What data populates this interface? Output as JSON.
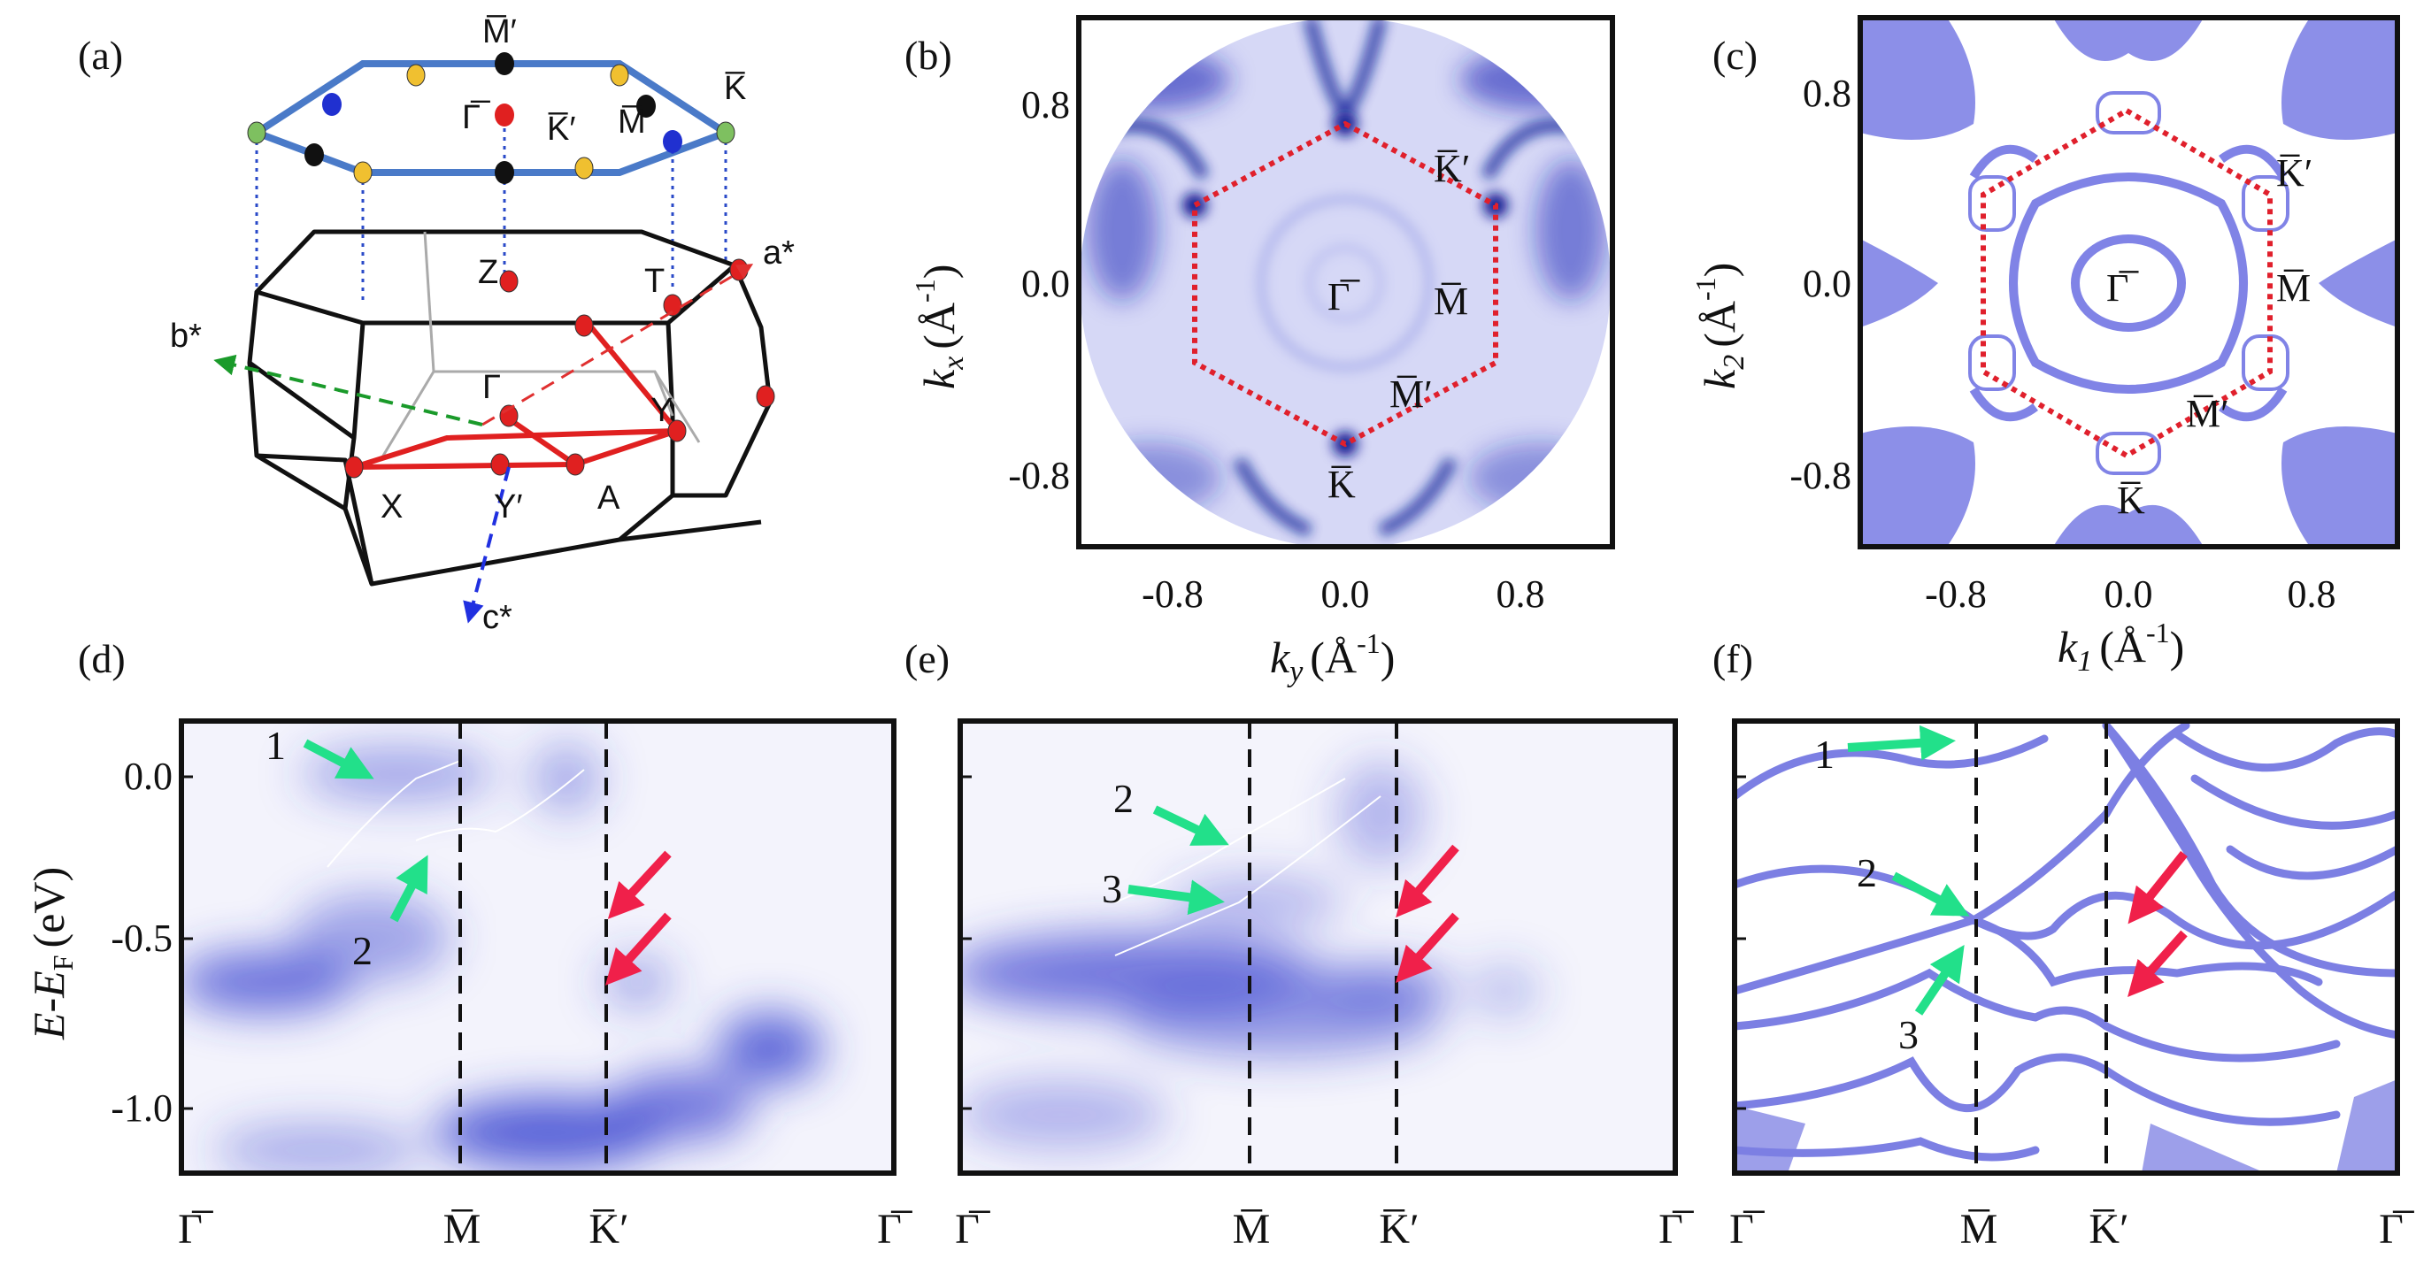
{
  "panels": {
    "a": {
      "label": "(a)",
      "top_points": [
        "M̅′",
        "Γ̅",
        "K̅′",
        "M̅",
        "K̅"
      ],
      "bulk_points": [
        "Z",
        "T",
        "Γ",
        "Y",
        "X",
        "Y′",
        "A"
      ],
      "axes": [
        "a*",
        "b*",
        "c*"
      ]
    },
    "b": {
      "label": "(b)",
      "xlabel_main": "k",
      "xlabel_sub": "y",
      "xlabel_unit": "(Å",
      "xlabel_exp": "-1",
      "ylabel_main": "k",
      "ylabel_sub": "x",
      "ylabel_unit": "(Å",
      "ylabel_exp": "-1",
      "xticks": [
        "-0.8",
        "0.0",
        "0.8"
      ],
      "yticks": [
        "0.8",
        "0.0",
        "-0.8"
      ],
      "points": {
        "gamma": "Γ̅",
        "m": "M̅",
        "k_prime": "K̅′",
        "m_prime": "M̅′",
        "k": "K̅"
      }
    },
    "c": {
      "label": "(c)",
      "xlabel_main": "k",
      "xlabel_sub": "1",
      "xlabel_unit": "(Å",
      "xlabel_exp": "-1",
      "ylabel_main": "k",
      "ylabel_sub": "2",
      "ylabel_unit": "(Å",
      "ylabel_exp": "-1",
      "xticks": [
        "-0.8",
        "0.0",
        "0.8"
      ],
      "yticks": [
        "0.8",
        "0.0",
        "-0.8"
      ],
      "points": {
        "gamma": "Γ̅",
        "m": "M̅",
        "k_prime": "K̅′",
        "m_prime": "M̅′",
        "k": "K̅"
      }
    },
    "d": {
      "label": "(d)",
      "ylabel_main": "E-E",
      "ylabel_sub": "F",
      "ylabel_unit": "(eV)",
      "yticks": [
        "0.0",
        "-0.5",
        "-1.0"
      ],
      "path": [
        "Γ̅",
        "M̅",
        "K̅′",
        "Γ̅"
      ],
      "arrows": [
        "1",
        "2"
      ]
    },
    "e": {
      "label": "(e)",
      "path": [
        "Γ̅",
        "M̅",
        "K̅′",
        "Γ̅"
      ],
      "arrows": [
        "2",
        "3"
      ]
    },
    "f": {
      "label": "(f)",
      "path": [
        "Γ̅",
        "M̅",
        "K̅′",
        "Γ̅"
      ],
      "arrows": [
        "1",
        "2",
        "3"
      ]
    }
  },
  "colors": {
    "band": "#2a32d8",
    "sim": "#7c7fe3",
    "hexagon": "#e0202c",
    "green_arrow": "#22e08a",
    "red_arrow": "#f0204a"
  }
}
